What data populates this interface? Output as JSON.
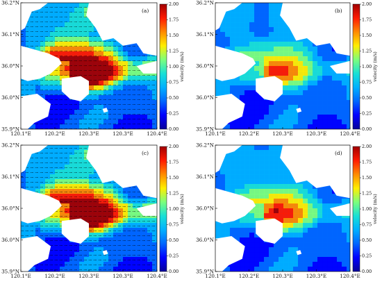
{
  "panels": [
    {
      "label": "(a)",
      "intensity": 1.0
    },
    {
      "label": "(b)",
      "intensity": 0.55
    },
    {
      "label": "(c)",
      "intensity": 1.0
    },
    {
      "label": "(d)",
      "intensity": 0.6
    }
  ],
  "x_tick_labels": [
    "120.1°E",
    "120.2°E",
    "120.3°E",
    "120.3°E",
    "120.4°E"
  ],
  "y_tick_labels": [
    "36.2°N",
    "36.1°N",
    "36.0°N",
    "36.0°N",
    "35.9°N"
  ],
  "colorbar": {
    "label": "velocity (m/s)",
    "ticks": [
      "2.00",
      "1.75",
      "1.50",
      "1.25",
      "1.00",
      "0.75",
      "0.50",
      "0.25",
      "0.00"
    ],
    "colors": [
      "#08009a",
      "#0000ff",
      "#0066ff",
      "#00b0ff",
      "#19e0d6",
      "#7cff7c",
      "#ffee00",
      "#ff8a00",
      "#ff1a00",
      "#a20000"
    ]
  },
  "land_color": "#ffffff",
  "arrow_color": "#000000"
}
